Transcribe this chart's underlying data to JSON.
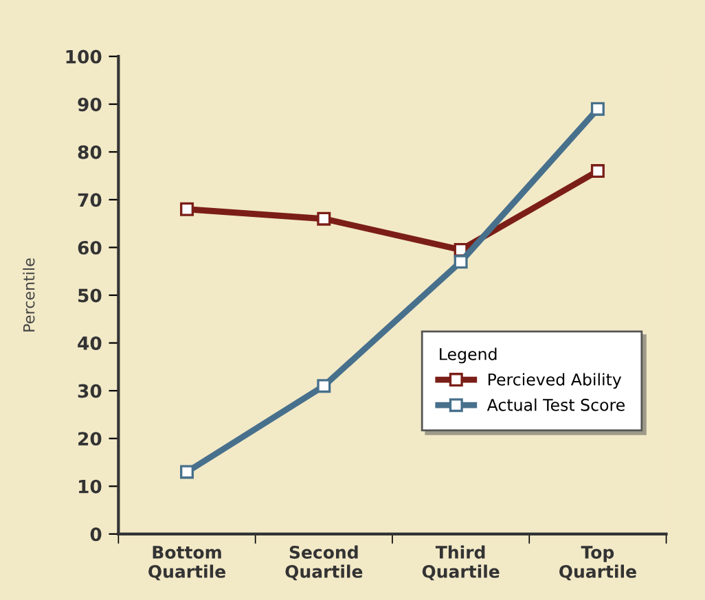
{
  "chart_data": {
    "type": "line",
    "ylabel": "Percentile",
    "categories": [
      "Bottom\nQuartile",
      "Second\nQuartile",
      "Third\nQuartile",
      "Top\nQuartile"
    ],
    "series": [
      {
        "name": "Percieved Ability",
        "color": "#7b1e17",
        "values": [
          68,
          66,
          59.5,
          76
        ]
      },
      {
        "name": "Actual Test Score",
        "color": "#47708c",
        "values": [
          13,
          31,
          57,
          89
        ]
      }
    ],
    "ylim": [
      0,
      100
    ],
    "yticks": [
      0,
      10,
      20,
      30,
      40,
      50,
      60,
      70,
      80,
      90,
      100
    ],
    "grid": false,
    "legend": "bottom right",
    "legend_title": "Legend",
    "marker": "square",
    "line_style": "solid"
  }
}
